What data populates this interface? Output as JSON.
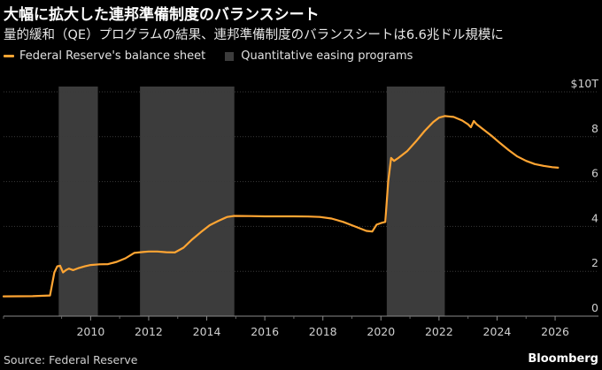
{
  "header": {
    "title": "大幅に拡大した連邦準備制度のバランスシート",
    "subtitle": "量的緩和（QE）プログラムの結果、連邦準備制度のバランスシートは6.6兆ドル規模に"
  },
  "footer": {
    "source": "Source: Federal Reserve",
    "brand": "Bloomberg"
  },
  "colors": {
    "background": "#000000",
    "line": "#ffa533",
    "qe_band": "#3c3c3c",
    "grid": "#3a3a3a",
    "text": "#ffffff"
  },
  "chart_data": {
    "type": "line",
    "title": "大幅に拡大した連邦準備制度のバランスシート",
    "subtitle": "量的緩和（QE）プログラムの結果、連邦準備制度のバランスシートは6.6兆ドル規模に",
    "ylabel": "",
    "ylim": [
      0,
      10
    ],
    "xlim": [
      2007.0,
      2026.7
    ],
    "y_axis_position": "right",
    "y_ticks": [
      {
        "value": 0,
        "label": "0"
      },
      {
        "value": 2,
        "label": "2"
      },
      {
        "value": 4,
        "label": "4"
      },
      {
        "value": 6,
        "label": "6"
      },
      {
        "value": 8,
        "label": "8"
      },
      {
        "value": 10,
        "label": "$10T"
      }
    ],
    "x_ticks": [
      {
        "value": 2010,
        "label": "2010"
      },
      {
        "value": 2012,
        "label": "2012"
      },
      {
        "value": 2014,
        "label": "2014"
      },
      {
        "value": 2016,
        "label": "2016"
      },
      {
        "value": 2018,
        "label": "2018"
      },
      {
        "value": 2020,
        "label": "2020"
      },
      {
        "value": 2022,
        "label": "2022"
      },
      {
        "value": 2024,
        "label": "2024"
      },
      {
        "value": 2026,
        "label": "2026"
      }
    ],
    "grid": "horizontal",
    "legend": "top-left",
    "legend_entries": [
      {
        "label": "Federal Reserve's balance sheet",
        "kind": "line"
      },
      {
        "label": "Quantitative easing programs",
        "kind": "band"
      }
    ],
    "bands": [
      {
        "name": "Quantitative easing programs",
        "start": 2008.9,
        "end": 2010.25
      },
      {
        "name": "Quantitative easing programs",
        "start": 2011.7,
        "end": 2014.95
      },
      {
        "name": "Quantitative easing programs",
        "start": 2020.2,
        "end": 2022.2
      }
    ],
    "series": [
      {
        "name": "Federal Reserve's balance sheet",
        "x": [
          2007.0,
          2008.0,
          2008.6,
          2008.75,
          2008.85,
          2008.95,
          2009.05,
          2009.15,
          2009.25,
          2009.4,
          2009.6,
          2009.8,
          2010.0,
          2010.3,
          2010.6,
          2010.9,
          2011.2,
          2011.5,
          2011.8,
          2012.0,
          2012.3,
          2012.6,
          2012.9,
          2013.2,
          2013.5,
          2013.8,
          2014.1,
          2014.4,
          2014.7,
          2014.95,
          2015.5,
          2016.0,
          2016.5,
          2017.0,
          2017.5,
          2017.9,
          2018.3,
          2018.7,
          2019.1,
          2019.5,
          2019.7,
          2019.85,
          2020.0,
          2020.15,
          2020.25,
          2020.35,
          2020.45,
          2020.6,
          2020.9,
          2021.2,
          2021.5,
          2021.8,
          2022.0,
          2022.2,
          2022.5,
          2022.8,
          2023.0,
          2023.1,
          2023.2,
          2023.3,
          2023.5,
          2023.8,
          2024.1,
          2024.4,
          2024.7,
          2025.0,
          2025.3,
          2025.6,
          2025.9,
          2026.1
        ],
        "values": [
          0.88,
          0.89,
          0.92,
          1.95,
          2.22,
          2.25,
          1.95,
          2.05,
          2.12,
          2.05,
          2.15,
          2.22,
          2.28,
          2.31,
          2.32,
          2.42,
          2.58,
          2.82,
          2.86,
          2.88,
          2.88,
          2.85,
          2.84,
          3.05,
          3.42,
          3.75,
          4.05,
          4.25,
          4.42,
          4.47,
          4.46,
          4.45,
          4.45,
          4.45,
          4.44,
          4.42,
          4.35,
          4.2,
          4.0,
          3.8,
          3.77,
          4.08,
          4.15,
          4.2,
          6.0,
          7.05,
          6.92,
          7.05,
          7.35,
          7.78,
          8.25,
          8.65,
          8.85,
          8.92,
          8.88,
          8.72,
          8.55,
          8.42,
          8.7,
          8.55,
          8.35,
          8.05,
          7.72,
          7.4,
          7.12,
          6.92,
          6.78,
          6.7,
          6.64,
          6.62
        ]
      }
    ]
  }
}
